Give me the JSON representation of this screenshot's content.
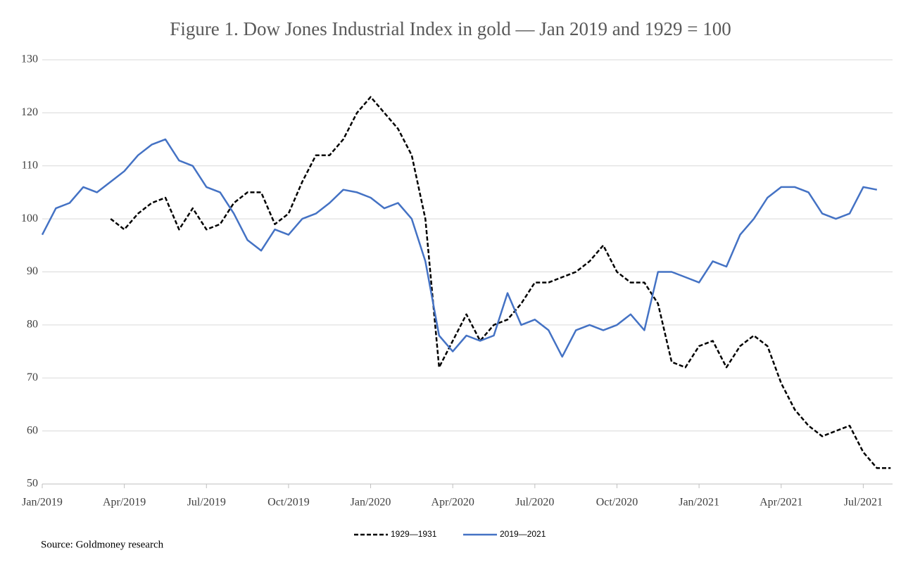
{
  "chart_data": {
    "type": "line",
    "title": "Figure 1. Dow Jones Industrial Index in gold — Jan 2019 and 1929 = 100",
    "source": "Source: Goldmoney research",
    "x": [
      0,
      0.5,
      1,
      1.5,
      2,
      2.5,
      3,
      3.5,
      4,
      4.5,
      5,
      5.5,
      6,
      6.5,
      7,
      7.5,
      8,
      8.5,
      9,
      9.5,
      10,
      10.5,
      11,
      11.5,
      12,
      12.5,
      13,
      13.5,
      14,
      14.5,
      15,
      15.5,
      16,
      16.5,
      17,
      17.5,
      18,
      18.5,
      19,
      19.5,
      20,
      20.5,
      21,
      21.5,
      22,
      22.5,
      23,
      23.5,
      24,
      24.5,
      25,
      25.5,
      26,
      26.5,
      27,
      27.5,
      28,
      28.5,
      29,
      29.5,
      30,
      30.5,
      31
    ],
    "series": [
      {
        "name": "1929—1931",
        "color": "#000000",
        "line_style": "dashed",
        "values": [
          null,
          null,
          null,
          null,
          null,
          100,
          98,
          101,
          103,
          104,
          98,
          102,
          98,
          99,
          103,
          105,
          105,
          99,
          101,
          107,
          112,
          112,
          115,
          120,
          123,
          120,
          117,
          112,
          100,
          72,
          77,
          82,
          77,
          80,
          81,
          84,
          88,
          88,
          89,
          90,
          92,
          95,
          90,
          88,
          88,
          84,
          73,
          72,
          76,
          77,
          72,
          76,
          78,
          76,
          69,
          64,
          61,
          59,
          60,
          61,
          56,
          53,
          53
        ]
      },
      {
        "name": "2019—2021",
        "color": "#4472c4",
        "line_style": "solid",
        "values": [
          97,
          102,
          103,
          106,
          105,
          107,
          109,
          112,
          114,
          115,
          111,
          110,
          106,
          105,
          101,
          96,
          94,
          98,
          97,
          100,
          101,
          103,
          105.5,
          105,
          104,
          102,
          103,
          100,
          92,
          78,
          75,
          78,
          77,
          78,
          86,
          80,
          81,
          79,
          74,
          79,
          80,
          79,
          80,
          82,
          79,
          90,
          90,
          89,
          88,
          92,
          91,
          97,
          100,
          104,
          106,
          106,
          105,
          101,
          100,
          101,
          106,
          105.5,
          null
        ]
      }
    ],
    "xlim": [
      0,
      31.07
    ],
    "xticks": [
      {
        "value": 0,
        "label": "Jan/2019"
      },
      {
        "value": 3,
        "label": "Apr/2019"
      },
      {
        "value": 6,
        "label": "Jul/2019"
      },
      {
        "value": 9,
        "label": "Oct/2019"
      },
      {
        "value": 12,
        "label": "Jan/2020"
      },
      {
        "value": 15,
        "label": "Apr/2020"
      },
      {
        "value": 18,
        "label": "Jul/2020"
      },
      {
        "value": 21,
        "label": "Oct/2020"
      },
      {
        "value": 24,
        "label": "Jan/2021"
      },
      {
        "value": 27,
        "label": "Apr/2021"
      },
      {
        "value": 30,
        "label": "Jul/2021"
      }
    ],
    "ylim": [
      50,
      130
    ],
    "yticks": [
      50,
      60,
      70,
      80,
      90,
      100,
      110,
      120,
      130
    ],
    "grid": true,
    "legend": "bottom"
  }
}
